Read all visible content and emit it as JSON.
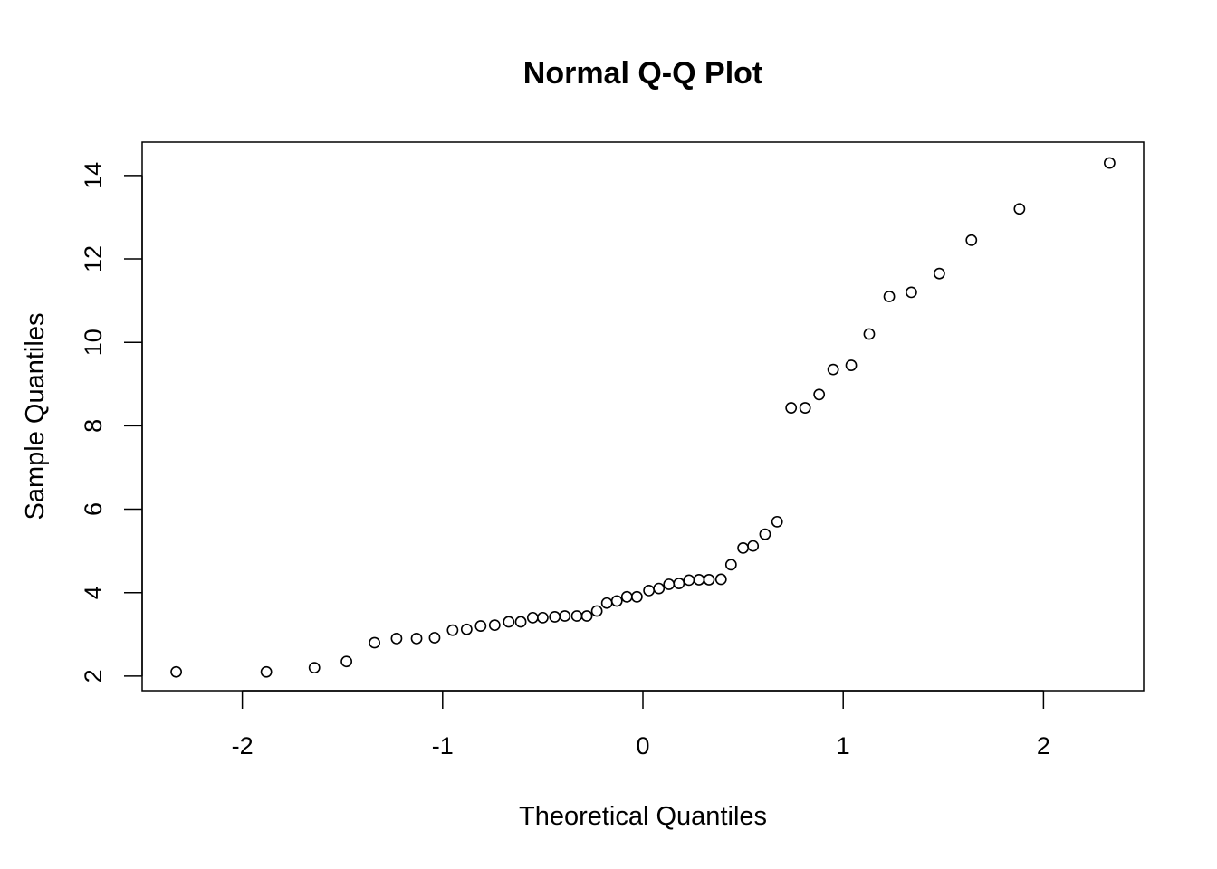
{
  "chart_data": {
    "type": "scatter",
    "title": "Normal Q-Q Plot",
    "xlabel": "Theoretical Quantiles",
    "ylabel": "Sample Quantiles",
    "xlim": [
      -2.5,
      2.5
    ],
    "ylim": [
      1.65,
      14.8
    ],
    "x_ticks": [
      -2,
      -1,
      0,
      1,
      2
    ],
    "y_ticks": [
      2,
      4,
      6,
      8,
      10,
      12,
      14
    ],
    "grid": false,
    "marker": "open-circle",
    "x": [
      -2.33,
      -1.88,
      -1.64,
      -1.48,
      -1.34,
      -1.23,
      -1.13,
      -1.04,
      -0.95,
      -0.88,
      -0.81,
      -0.74,
      -0.67,
      -0.61,
      -0.55,
      -0.5,
      -0.44,
      -0.39,
      -0.33,
      -0.28,
      -0.23,
      -0.18,
      -0.13,
      -0.08,
      -0.03,
      0.03,
      0.08,
      0.13,
      0.18,
      0.23,
      0.28,
      0.33,
      0.39,
      0.44,
      0.5,
      0.55,
      0.61,
      0.67,
      0.74,
      0.81,
      0.88,
      0.95,
      1.04,
      1.13,
      1.23,
      1.34,
      1.48,
      1.64,
      1.88,
      2.33
    ],
    "y": [
      2.1,
      2.1,
      2.2,
      2.35,
      2.8,
      2.9,
      2.9,
      2.92,
      3.1,
      3.12,
      3.2,
      3.22,
      3.3,
      3.3,
      3.4,
      3.4,
      3.42,
      3.44,
      3.44,
      3.44,
      3.56,
      3.75,
      3.8,
      3.9,
      3.9,
      4.05,
      4.1,
      4.2,
      4.22,
      4.3,
      4.31,
      4.31,
      4.32,
      4.67,
      5.07,
      5.12,
      5.4,
      5.7,
      8.43,
      8.43,
      8.75,
      9.35,
      9.45,
      10.2,
      11.1,
      11.2,
      11.65,
      12.45,
      13.2,
      14.3
    ]
  }
}
